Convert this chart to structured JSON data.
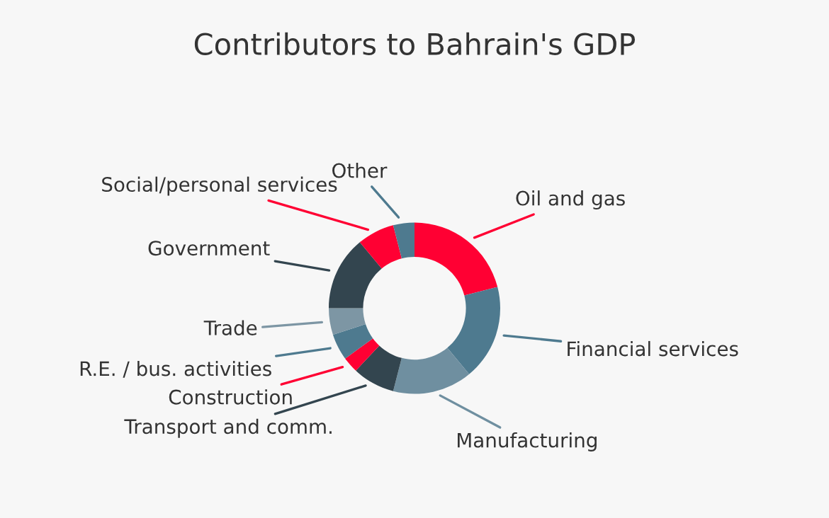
{
  "chart_data": {
    "type": "donut",
    "title": "Contributors to Bahrain's GDP",
    "categories": [
      "Oil and gas",
      "Financial services",
      "Manufacturing",
      "Transport and comm.",
      "Construction",
      "R.E. / bus. activities",
      "Trade",
      "Government",
      "Social/personal services",
      "Other"
    ],
    "values": [
      21,
      18,
      15,
      8,
      3,
      5,
      5,
      14,
      7,
      4
    ],
    "colors": [
      "#ff0033",
      "#4e7a8f",
      "#6f8fa0",
      "#33454f",
      "#ff0033",
      "#4e7a8f",
      "#7d96a4",
      "#33454f",
      "#ff0033",
      "#4e7a8f"
    ],
    "legend": false
  }
}
